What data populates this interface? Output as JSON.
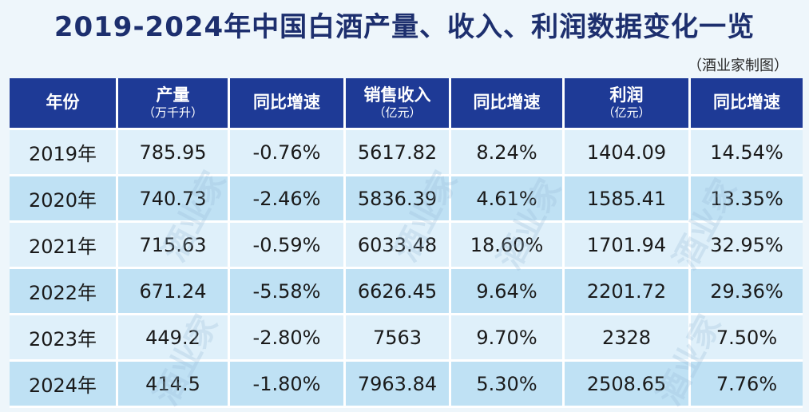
{
  "title": "2019-2024年中国白酒产量、收入、利润数据变化一览",
  "source": "（酒业家制图）",
  "headers": [
    {
      "label": "年份",
      "sub": ""
    },
    {
      "label": "产量",
      "sub": "（万千升）"
    },
    {
      "label": "同比增速",
      "sub": ""
    },
    {
      "label": "销售收入",
      "sub": "（亿元）"
    },
    {
      "label": "同比增速",
      "sub": ""
    },
    {
      "label": "利润",
      "sub": "（亿元）"
    },
    {
      "label": "同比增速",
      "sub": ""
    }
  ],
  "rows": [
    [
      "2019年",
      "785.95",
      "-0.76%",
      "5617.82",
      "8.24%",
      "1404.09",
      "14.54%"
    ],
    [
      "2020年",
      "740.73",
      "-2.46%",
      "5836.39",
      "4.61%",
      "1585.41",
      "13.35%"
    ],
    [
      "2021年",
      "715.63",
      "-0.59%",
      "6033.48",
      "18.60%",
      "1701.94",
      "32.95%"
    ],
    [
      "2022年",
      "671.24",
      "-5.58%",
      "6626.45",
      "9.64%",
      "2201.72",
      "29.36%"
    ],
    [
      "2023年",
      "449.2",
      "-2.80%",
      "7563",
      "9.70%",
      "2328",
      "7.50%"
    ],
    [
      "2024年",
      "414.5",
      "-1.80%",
      "7963.84",
      "5.30%",
      "2508.65",
      "7.76%"
    ]
  ],
  "watermark": "酒业家"
}
